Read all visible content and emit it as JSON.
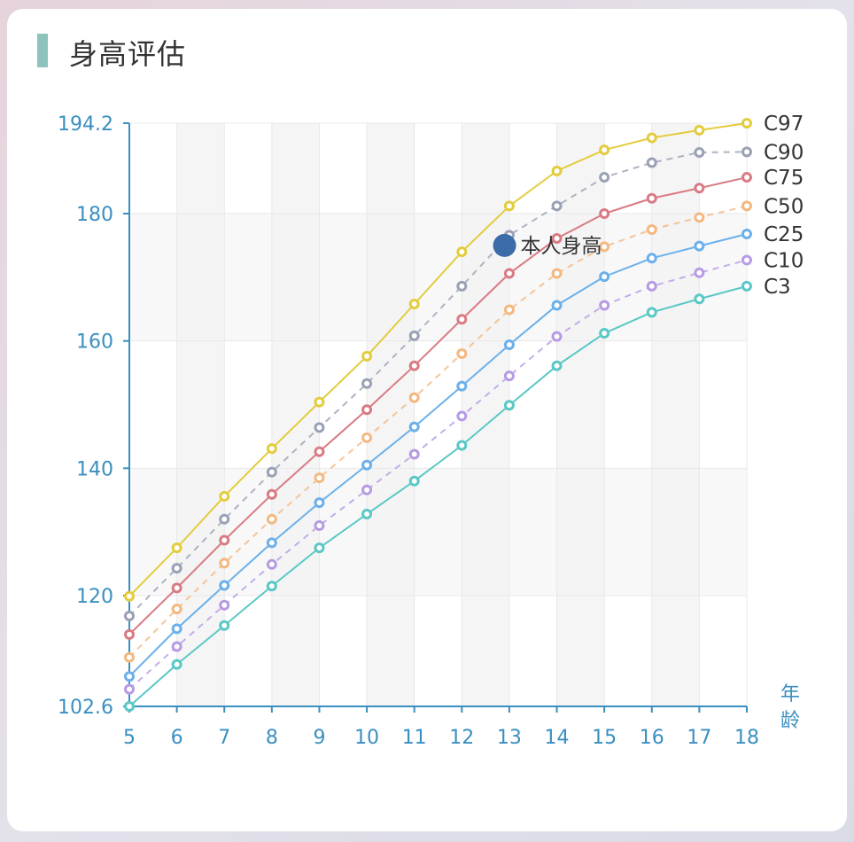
{
  "header": {
    "title": "身高评估"
  },
  "colors": {
    "axis": "#3a8fc0",
    "title_bar": "#8cc3bd",
    "band": "#f5f5f5",
    "me_marker": "#3b6ba8"
  },
  "chart_data": {
    "type": "line",
    "title": "身高评估",
    "xlabel": "年龄",
    "ylabel": "",
    "x": [
      5,
      6,
      7,
      8,
      9,
      10,
      11,
      12,
      13,
      14,
      15,
      16,
      17,
      18
    ],
    "xlim": [
      5,
      18
    ],
    "ylim": [
      102.6,
      194.2
    ],
    "yticks": [
      "102.6",
      "120",
      "140",
      "160",
      "180",
      "194.2"
    ],
    "grid": true,
    "legend_position": "right-end-of-lines",
    "series": [
      {
        "name": "C97",
        "color": "#e3cc3e",
        "dashed": false,
        "values": [
          119.9,
          127.5,
          135.6,
          143.1,
          150.4,
          157.6,
          165.8,
          174.0,
          181.2,
          186.7,
          190.0,
          191.9,
          193.1,
          194.2
        ]
      },
      {
        "name": "C90",
        "color": "#9ba1b4",
        "dashed": true,
        "values": [
          116.8,
          124.3,
          132.0,
          139.4,
          146.4,
          153.3,
          160.8,
          168.6,
          176.6,
          181.2,
          185.7,
          188.0,
          189.6,
          189.7
        ]
      },
      {
        "name": "C75",
        "color": "#d97b84",
        "dashed": false,
        "values": [
          113.9,
          121.2,
          128.7,
          135.9,
          142.6,
          149.2,
          156.1,
          163.4,
          170.6,
          176.1,
          180.0,
          182.4,
          184.0,
          185.7
        ]
      },
      {
        "name": "C50",
        "color": "#f3b880",
        "dashed": true,
        "values": [
          110.3,
          117.9,
          125.1,
          132.0,
          138.5,
          144.8,
          151.1,
          158.0,
          164.9,
          170.6,
          174.8,
          177.5,
          179.4,
          181.2
        ]
      },
      {
        "name": "C25",
        "color": "#6cb0ea",
        "dashed": false,
        "values": [
          107.3,
          114.8,
          121.6,
          128.3,
          134.6,
          140.5,
          146.5,
          152.9,
          159.4,
          165.6,
          170.1,
          173.0,
          174.9,
          176.8
        ]
      },
      {
        "name": "C10",
        "color": "#b69be3",
        "dashed": true,
        "values": [
          105.3,
          112.0,
          118.5,
          124.9,
          131.0,
          136.6,
          142.2,
          148.2,
          154.5,
          160.7,
          165.6,
          168.6,
          170.7,
          172.7
        ]
      },
      {
        "name": "C3",
        "color": "#5ac8c6",
        "dashed": false,
        "values": [
          102.6,
          109.2,
          115.3,
          121.5,
          127.5,
          132.8,
          138.0,
          143.6,
          149.9,
          156.1,
          161.2,
          164.5,
          166.6,
          168.6
        ]
      }
    ],
    "annotations": [
      {
        "label": "本人身高",
        "x": 12.9,
        "y": 175.0
      }
    ]
  }
}
